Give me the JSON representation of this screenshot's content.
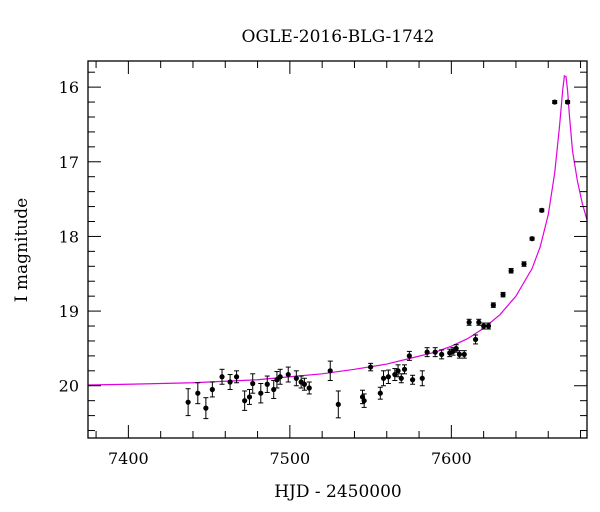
{
  "chart_data": {
    "type": "scatter",
    "title": "OGLE-2016-BLG-1742",
    "xlabel": "HJD - 2450000",
    "ylabel": "I magnitude",
    "xlim": [
      7375,
      7684
    ],
    "ylim": [
      20.7,
      15.65
    ],
    "y_inverted": true,
    "x_ticks": [
      7400,
      7500,
      7600
    ],
    "y_ticks": [
      16,
      17,
      18,
      19,
      20
    ],
    "x_minor_step": 20,
    "y_minor_step": 0.2,
    "grid": false,
    "colors": {
      "model": "#e100e1",
      "points": "#000000",
      "axes": "#000000"
    },
    "series": [
      {
        "kind": "points_with_errorbars",
        "x": [
          7437,
          7443,
          7448,
          7452,
          7458,
          7463,
          7467,
          7472,
          7475,
          7477,
          7482,
          7486,
          7490,
          7492,
          7494,
          7499,
          7504,
          7507,
          7509,
          7512,
          7525,
          7530,
          7545,
          7546,
          7550,
          7556,
          7558,
          7561,
          7565,
          7567,
          7569,
          7571,
          7574,
          7576,
          7582,
          7585,
          7590,
          7594,
          7599,
          7601,
          7603,
          7605,
          7608,
          7611,
          7615,
          7617,
          7620,
          7623,
          7626,
          7632,
          7637,
          7645,
          7650,
          7656,
          7664,
          7672
        ],
        "y": [
          20.22,
          20.1,
          20.3,
          20.05,
          19.88,
          19.95,
          19.88,
          20.2,
          20.15,
          19.97,
          20.1,
          19.98,
          20.05,
          19.92,
          19.88,
          19.85,
          19.9,
          19.95,
          19.98,
          20.03,
          19.8,
          20.25,
          20.15,
          20.2,
          19.75,
          20.1,
          19.9,
          19.88,
          19.85,
          19.8,
          19.9,
          19.78,
          19.6,
          19.92,
          19.9,
          19.55,
          19.55,
          19.58,
          19.56,
          19.54,
          19.5,
          19.58,
          19.58,
          19.15,
          19.38,
          19.15,
          19.2,
          19.2,
          18.92,
          18.78,
          18.46,
          18.37,
          18.03,
          17.65,
          16.2,
          16.2
        ],
        "yerr": [
          0.18,
          0.14,
          0.14,
          0.1,
          0.1,
          0.1,
          0.08,
          0.13,
          0.1,
          0.13,
          0.13,
          0.11,
          0.12,
          0.11,
          0.1,
          0.1,
          0.1,
          0.08,
          0.08,
          0.08,
          0.13,
          0.18,
          0.09,
          0.09,
          0.05,
          0.08,
          0.1,
          0.09,
          0.08,
          0.08,
          0.06,
          0.06,
          0.06,
          0.06,
          0.1,
          0.06,
          0.06,
          0.06,
          0.05,
          0.05,
          0.05,
          0.05,
          0.05,
          0.04,
          0.06,
          0.04,
          0.04,
          0.04,
          0.03,
          0.03,
          0.03,
          0.03,
          0.02,
          0.02,
          0.02,
          0.02
        ]
      },
      {
        "kind": "model_curve",
        "x": [
          7375,
          7400,
          7420,
          7440,
          7460,
          7480,
          7500,
          7520,
          7540,
          7560,
          7575,
          7590,
          7600,
          7610,
          7620,
          7630,
          7640,
          7650,
          7655,
          7660,
          7664,
          7667,
          7669,
          7670,
          7671,
          7672,
          7673,
          7675,
          7678,
          7681,
          7684
        ],
        "y": [
          19.99,
          19.98,
          19.97,
          19.96,
          19.94,
          19.92,
          19.88,
          19.84,
          19.78,
          19.71,
          19.63,
          19.55,
          19.47,
          19.37,
          19.23,
          19.05,
          18.8,
          18.43,
          18.14,
          17.71,
          17.15,
          16.52,
          16.03,
          15.85,
          15.86,
          16.05,
          16.35,
          16.85,
          17.25,
          17.55,
          17.78
        ]
      }
    ]
  }
}
